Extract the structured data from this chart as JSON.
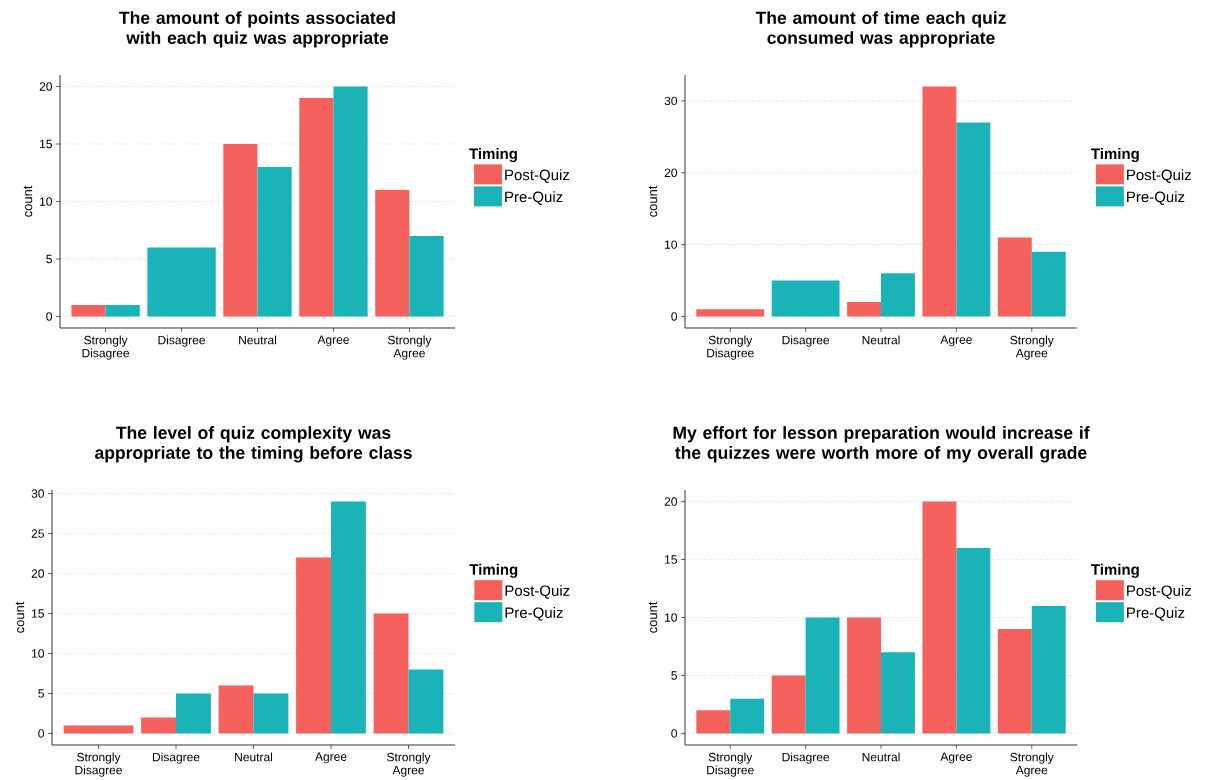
{
  "chart_data": [
    {
      "type": "bar",
      "title": "The amount of points associated with each quiz was appropriate",
      "ylabel": "count",
      "legend_title": "Timing",
      "categories": [
        "Strongly Disagree",
        "Disagree",
        "Neutral",
        "Agree",
        "Strongly Agree"
      ],
      "series": [
        {
          "name": "Post-Quiz",
          "color": "#f5615c",
          "values": [
            1,
            null,
            15,
            19,
            11
          ]
        },
        {
          "name": "Pre-Quiz",
          "color": "#1ab4b8",
          "values": [
            1,
            6,
            13,
            20,
            7
          ]
        }
      ],
      "ylim": [
        -1,
        21
      ],
      "yticks": [
        0,
        5,
        10,
        15,
        20
      ],
      "grid": "y",
      "legend": "right"
    },
    {
      "type": "bar",
      "title": "The amount of time each quiz consumed was appropriate",
      "ylabel": "count",
      "legend_title": "Timing",
      "categories": [
        "Strongly Disagree",
        "Disagree",
        "Neutral",
        "Agree",
        "Strongly Agree"
      ],
      "series": [
        {
          "name": "Post-Quiz",
          "color": "#f5615c",
          "values": [
            1,
            null,
            2,
            32,
            11
          ]
        },
        {
          "name": "Pre-Quiz",
          "color": "#1ab4b8",
          "values": [
            null,
            5,
            6,
            27,
            9
          ]
        }
      ],
      "ylim": [
        -1.6,
        33.6
      ],
      "yticks": [
        0,
        10,
        20,
        30
      ],
      "grid": "y",
      "legend": "right"
    },
    {
      "type": "bar",
      "title": "The level of quiz complexity was appropriate to the timing before class",
      "ylabel": "count",
      "legend_title": "Timing",
      "categories": [
        "Strongly Disagree",
        "Disagree",
        "Neutral",
        "Agree",
        "Strongly Agree"
      ],
      "series": [
        {
          "name": "Post-Quiz",
          "color": "#f5615c",
          "values": [
            1,
            2,
            6,
            22,
            15
          ]
        },
        {
          "name": "Pre-Quiz",
          "color": "#1ab4b8",
          "values": [
            null,
            5,
            5,
            29,
            8
          ]
        }
      ],
      "ylim": [
        -1.45,
        30.45
      ],
      "yticks": [
        0,
        5,
        10,
        15,
        20,
        25,
        30
      ],
      "grid": "y",
      "legend": "right"
    },
    {
      "type": "bar",
      "title": "My effort for lesson preparation would increase if the quizzes were worth more of my overall grade",
      "ylabel": "count",
      "legend_title": "Timing",
      "categories": [
        "Strongly Disagree",
        "Disagree",
        "Neutral",
        "Agree",
        "Strongly Agree"
      ],
      "series": [
        {
          "name": "Post-Quiz",
          "color": "#f5615c",
          "values": [
            2,
            5,
            10,
            20,
            9
          ]
        },
        {
          "name": "Pre-Quiz",
          "color": "#1ab4b8",
          "values": [
            3,
            10,
            7,
            16,
            11
          ]
        }
      ],
      "ylim": [
        -1,
        21
      ],
      "yticks": [
        0,
        5,
        10,
        15,
        20
      ],
      "grid": "y",
      "legend": "right"
    }
  ]
}
